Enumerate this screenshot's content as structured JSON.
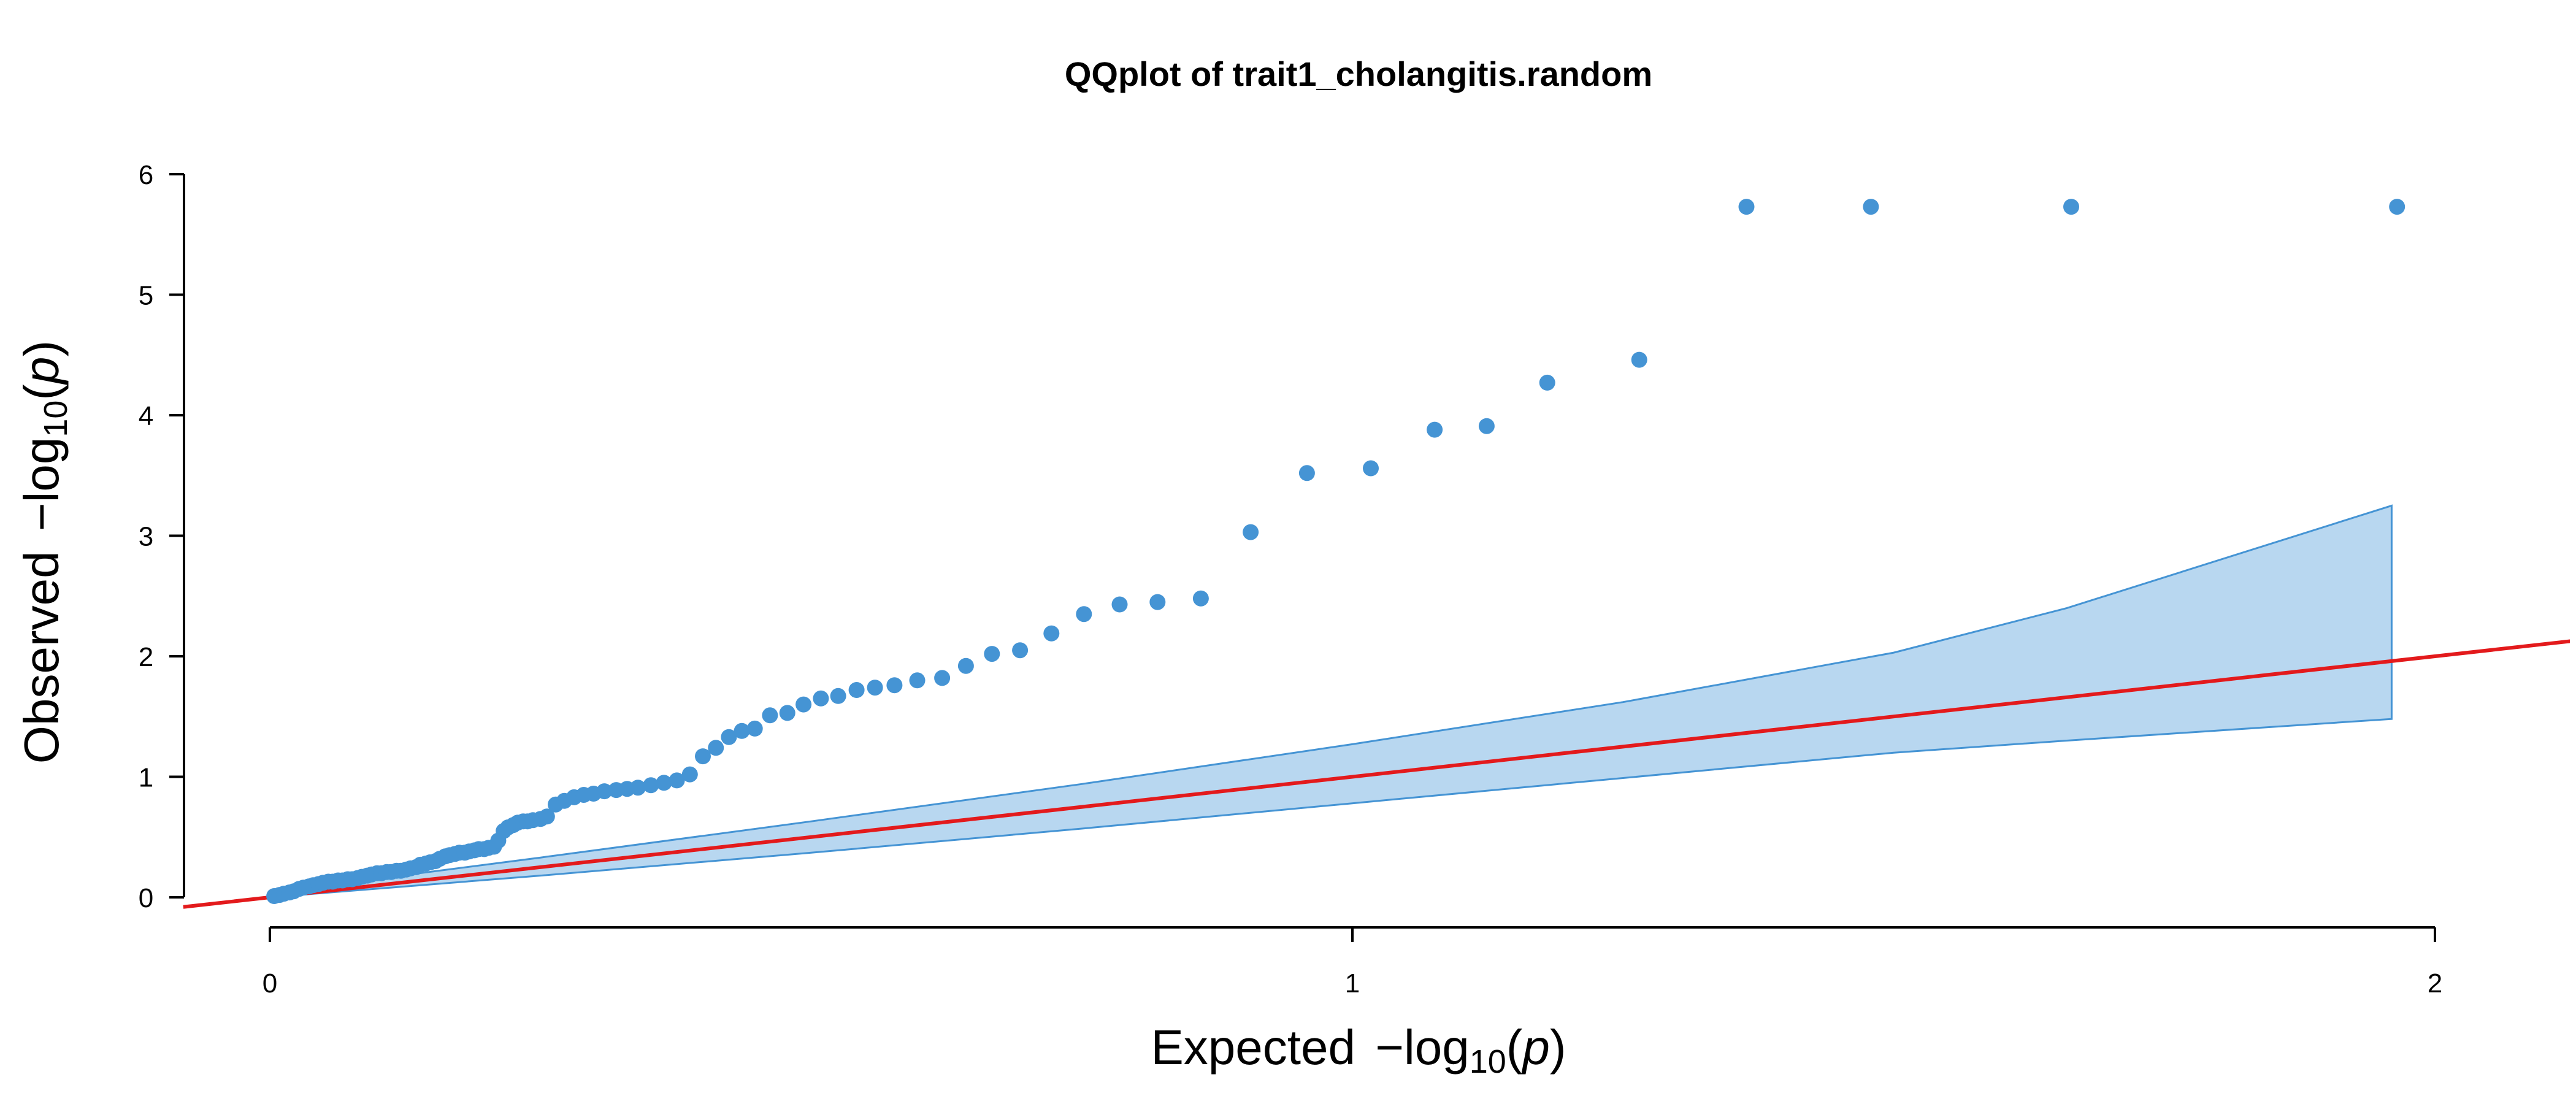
{
  "chart_data": {
    "type": "scatter",
    "title": "QQplot of trait1_cholangitis.random",
    "xlabel": {
      "prefix": "Expected ",
      "minus": "−",
      "log": "log",
      "base": "10",
      "open": "(",
      "var": "p",
      "close": ")"
    },
    "ylabel": {
      "prefix": "Observed ",
      "minus": "−",
      "log": "log",
      "base": "10",
      "open": "(",
      "var": "p",
      "close": ")"
    },
    "xlim": [
      0,
      2
    ],
    "ylim": [
      0,
      6
    ],
    "x_ticks": [
      {
        "value": 0,
        "label": "0"
      },
      {
        "value": 1,
        "label": "1"
      },
      {
        "value": 2,
        "label": "2"
      }
    ],
    "y_ticks": [
      {
        "value": 0,
        "label": "0"
      },
      {
        "value": 1,
        "label": "1"
      },
      {
        "value": 2,
        "label": "2"
      },
      {
        "value": 3,
        "label": "3"
      },
      {
        "value": 4,
        "label": "4"
      },
      {
        "value": 5,
        "label": "5"
      },
      {
        "value": 6,
        "label": "6"
      }
    ],
    "grid": false,
    "colors": {
      "points": "#4594d4",
      "band_fill": "#b8d7f0",
      "band_edge": "#4594d4",
      "reference_line": "#e31a1c"
    },
    "reference_line": {
      "slope": 1,
      "intercept": 0
    },
    "confidence_band": {
      "x": [
        0.0,
        0.25,
        0.5,
        0.75,
        1.0,
        1.25,
        1.5,
        1.66,
        1.96
      ],
      "upper": [
        0.04,
        0.33,
        0.63,
        0.94,
        1.27,
        1.62,
        2.03,
        2.4,
        3.25
      ],
      "lower": [
        0.0,
        0.18,
        0.37,
        0.57,
        0.78,
        0.99,
        1.2,
        1.3,
        1.48
      ]
    },
    "series": [
      {
        "x": [
          0.004,
          0.009,
          0.013,
          0.018,
          0.022,
          0.027,
          0.031,
          0.036,
          0.04,
          0.045,
          0.049,
          0.054,
          0.058,
          0.063,
          0.067,
          0.072,
          0.076,
          0.081,
          0.085,
          0.09,
          0.094,
          0.099,
          0.103,
          0.108,
          0.112,
          0.117,
          0.121,
          0.126,
          0.13,
          0.135,
          0.139,
          0.144,
          0.148,
          0.153,
          0.157,
          0.162,
          0.166,
          0.171,
          0.175,
          0.18,
          0.184,
          0.189,
          0.193,
          0.198,
          0.202,
          0.207,
          0.211,
          0.216,
          0.22,
          0.225,
          0.229,
          0.234,
          0.238,
          0.243,
          0.25,
          0.256,
          0.264,
          0.272,
          0.281,
          0.29,
          0.299,
          0.309,
          0.32,
          0.33,
          0.34,
          0.352,
          0.364,
          0.376,
          0.388,
          0.4,
          0.412,
          0.424,
          0.436,
          0.448,
          0.462,
          0.478,
          0.493,
          0.509,
          0.525,
          0.542,
          0.559,
          0.577,
          0.598,
          0.621,
          0.643,
          0.667,
          0.693,
          0.722,
          0.752,
          0.785,
          0.82,
          0.86,
          0.906,
          0.958,
          1.017,
          1.076,
          1.124,
          1.18,
          1.265,
          1.364,
          1.479,
          1.664,
          1.965
        ],
        "y": [
          0.01,
          0.02,
          0.03,
          0.04,
          0.05,
          0.07,
          0.08,
          0.09,
          0.1,
          0.11,
          0.12,
          0.13,
          0.13,
          0.14,
          0.14,
          0.15,
          0.15,
          0.16,
          0.17,
          0.18,
          0.19,
          0.2,
          0.2,
          0.21,
          0.21,
          0.22,
          0.22,
          0.23,
          0.24,
          0.25,
          0.27,
          0.28,
          0.29,
          0.3,
          0.32,
          0.34,
          0.35,
          0.36,
          0.37,
          0.37,
          0.38,
          0.39,
          0.4,
          0.4,
          0.41,
          0.42,
          0.47,
          0.55,
          0.58,
          0.6,
          0.62,
          0.63,
          0.63,
          0.64,
          0.65,
          0.67,
          0.77,
          0.8,
          0.83,
          0.85,
          0.86,
          0.88,
          0.89,
          0.9,
          0.91,
          0.93,
          0.95,
          0.97,
          1.02,
          1.17,
          1.24,
          1.33,
          1.38,
          1.4,
          1.51,
          1.53,
          1.6,
          1.65,
          1.67,
          1.72,
          1.74,
          1.76,
          1.8,
          1.82,
          1.92,
          2.02,
          2.05,
          2.19,
          2.35,
          2.43,
          2.45,
          2.48,
          3.03,
          3.52,
          3.56,
          3.88,
          3.91,
          4.27,
          4.46,
          5.73,
          5.73,
          5.73,
          5.73
        ]
      }
    ]
  }
}
